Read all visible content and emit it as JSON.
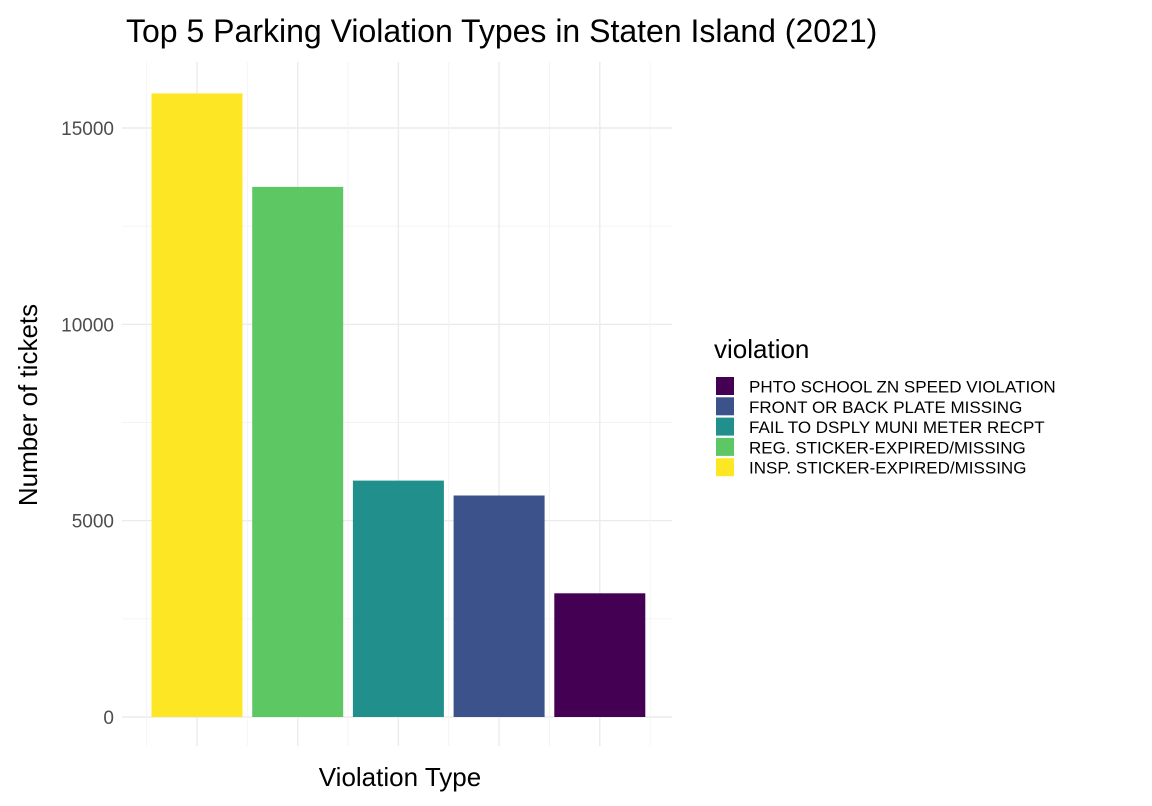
{
  "chart_data": {
    "type": "bar",
    "title": "Top 5 Parking Violation Types in Staten Island (2021)",
    "xlabel": "Violation Type",
    "ylabel": "Number of tickets",
    "ylim": [
      0,
      16000
    ],
    "yticks": [
      0,
      5000,
      10000,
      15000
    ],
    "grid": true,
    "legend": {
      "title": "violation",
      "position": "right",
      "entries": [
        {
          "label": "PHTO SCHOOL ZN SPEED VIOLATION",
          "color": "#440154"
        },
        {
          "label": "FRONT OR BACK PLATE MISSING",
          "color": "#3B528B"
        },
        {
          "label": "FAIL TO DSPLY MUNI METER RECPT",
          "color": "#21908C"
        },
        {
          "label": "REG. STICKER-EXPIRED/MISSING",
          "color": "#5DC863"
        },
        {
          "label": "INSP. STICKER-EXPIRED/MISSING",
          "color": "#FDE725"
        }
      ]
    },
    "categories": [
      "INSP. STICKER-EXPIRED/MISSING",
      "REG. STICKER-EXPIRED/MISSING",
      "FAIL TO DSPLY MUNI METER RECPT",
      "FRONT OR BACK PLATE MISSING",
      "PHTO SCHOOL ZN SPEED VIOLATION"
    ],
    "values": [
      15880,
      13500,
      6020,
      5640,
      3150
    ],
    "colors": [
      "#FDE725",
      "#5DC863",
      "#21908C",
      "#3B528B",
      "#440154"
    ]
  }
}
